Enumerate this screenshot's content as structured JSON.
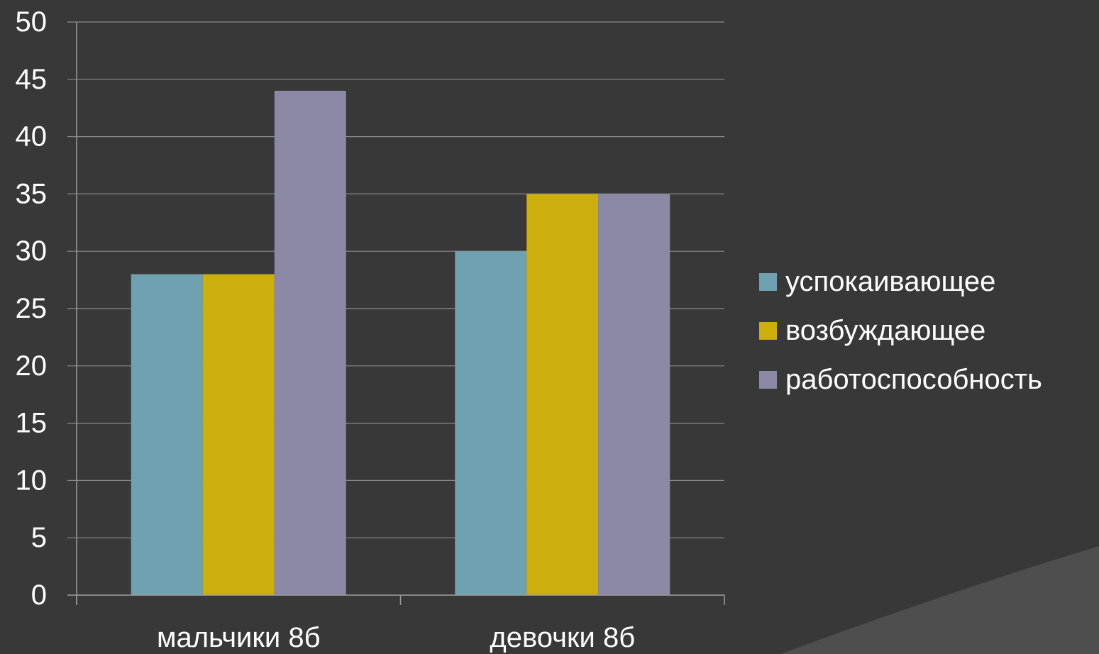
{
  "chart_data": {
    "type": "bar",
    "categories": [
      "мальчики 8б",
      "девочки 8б"
    ],
    "series": [
      {
        "name": "успокаивающее",
        "values": [
          28,
          30
        ],
        "color": "#6fa1b0"
      },
      {
        "name": "возбуждающее",
        "values": [
          28,
          35
        ],
        "color": "#ccae0c"
      },
      {
        "name": "работоспособность",
        "values": [
          44,
          35
        ],
        "color": "#8b89a5"
      }
    ],
    "ylim": [
      0,
      50
    ],
    "y_ticks": [
      "0",
      "5",
      "10",
      "15",
      "20",
      "25",
      "30",
      "35",
      "40",
      "45",
      "50"
    ],
    "grid": true,
    "legend_position": "right",
    "title": "",
    "xlabel": "",
    "ylabel": ""
  },
  "colors": {
    "background": "#383838",
    "gridline": "#8a8a8a",
    "axis": "#9a9a9a",
    "text": "#ffffff",
    "corner_shape": "#4e4e4e"
  }
}
